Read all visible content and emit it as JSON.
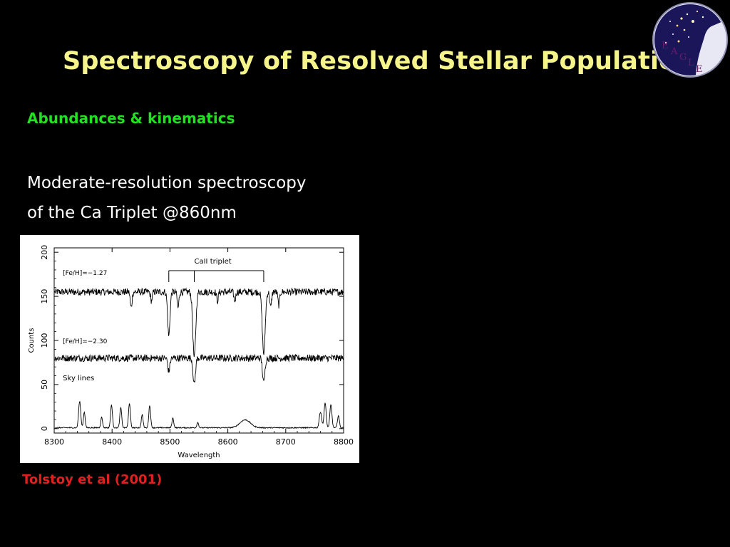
{
  "slide": {
    "title": "Spectroscopy of Resolved Stellar Populations",
    "subtitle": "Abundances & kinematics",
    "body_lines": [
      "Moderate-resolution spectroscopy",
      "of the Ca Triplet @860nm"
    ],
    "citation": "Tolstoy et al (2001)",
    "logo_letters": [
      "E",
      "A",
      "G",
      "L",
      "E"
    ],
    "colors": {
      "title": "#f5f58c",
      "subtitle": "#22e022",
      "citation": "#e02020",
      "logo_sky": "#1b1659",
      "logo_ring": "#e8e8f4",
      "logo_letters": "#6a1a6a"
    }
  },
  "chart_data": {
    "type": "line",
    "xlabel": "Wavelength",
    "ylabel": "Counts",
    "xlim": [
      8300,
      8800
    ],
    "ylim": [
      -5,
      205
    ],
    "x_ticks": [
      8300,
      8400,
      8500,
      8600,
      8700,
      8800
    ],
    "y_ticks": [
      0,
      50,
      100,
      150,
      200
    ],
    "annotations": [
      {
        "text": "CaII triplet"
      },
      {
        "text": "[Fe/H]=−1.27"
      },
      {
        "text": "[Fe/H]=−2.30"
      },
      {
        "text": "Sky lines"
      }
    ],
    "ca_triplet_lines": [
      8498,
      8542,
      8662
    ],
    "series": [
      {
        "continuum": 155,
        "noise": 4,
        "absorption": [
          {
            "x": 8433,
            "depth": 18,
            "width": 1.5
          },
          {
            "x": 8468,
            "depth": 10,
            "width": 1.5
          },
          {
            "x": 8498,
            "depth": 50,
            "width": 2.0
          },
          {
            "x": 8514,
            "depth": 18,
            "width": 1.5
          },
          {
            "x": 8542,
            "depth": 75,
            "width": 2.5
          },
          {
            "x": 8582,
            "depth": 10,
            "width": 1.5
          },
          {
            "x": 8612,
            "depth": 10,
            "width": 1.5
          },
          {
            "x": 8662,
            "depth": 70,
            "width": 2.5
          },
          {
            "x": 8674,
            "depth": 18,
            "width": 1.5
          },
          {
            "x": 8688,
            "depth": 15,
            "width": 1.5
          }
        ]
      },
      {
        "continuum": 80,
        "noise": 4,
        "absorption": [
          {
            "x": 8498,
            "depth": 15,
            "width": 1.8
          },
          {
            "x": 8542,
            "depth": 30,
            "width": 2.0
          },
          {
            "x": 8662,
            "depth": 28,
            "width": 2.0
          }
        ]
      },
      {
        "continuum": 1,
        "noise": 0.6,
        "emission": [
          {
            "x": 8344,
            "height": 30,
            "width": 1.8
          },
          {
            "x": 8352,
            "height": 18,
            "width": 1.5
          },
          {
            "x": 8382,
            "height": 12,
            "width": 1.5
          },
          {
            "x": 8399,
            "height": 26,
            "width": 1.6
          },
          {
            "x": 8415,
            "height": 23,
            "width": 1.6
          },
          {
            "x": 8430,
            "height": 28,
            "width": 1.6
          },
          {
            "x": 8452,
            "height": 15,
            "width": 1.5
          },
          {
            "x": 8465,
            "height": 25,
            "width": 1.6
          },
          {
            "x": 8505,
            "height": 11,
            "width": 1.5
          },
          {
            "x": 8548,
            "height": 6,
            "width": 1.5
          },
          {
            "x": 8630,
            "height": 9,
            "width": 9
          },
          {
            "x": 8760,
            "height": 18,
            "width": 2.0
          },
          {
            "x": 8768,
            "height": 28,
            "width": 1.8
          },
          {
            "x": 8778,
            "height": 26,
            "width": 1.8
          },
          {
            "x": 8791,
            "height": 14,
            "width": 1.6
          }
        ]
      }
    ]
  }
}
